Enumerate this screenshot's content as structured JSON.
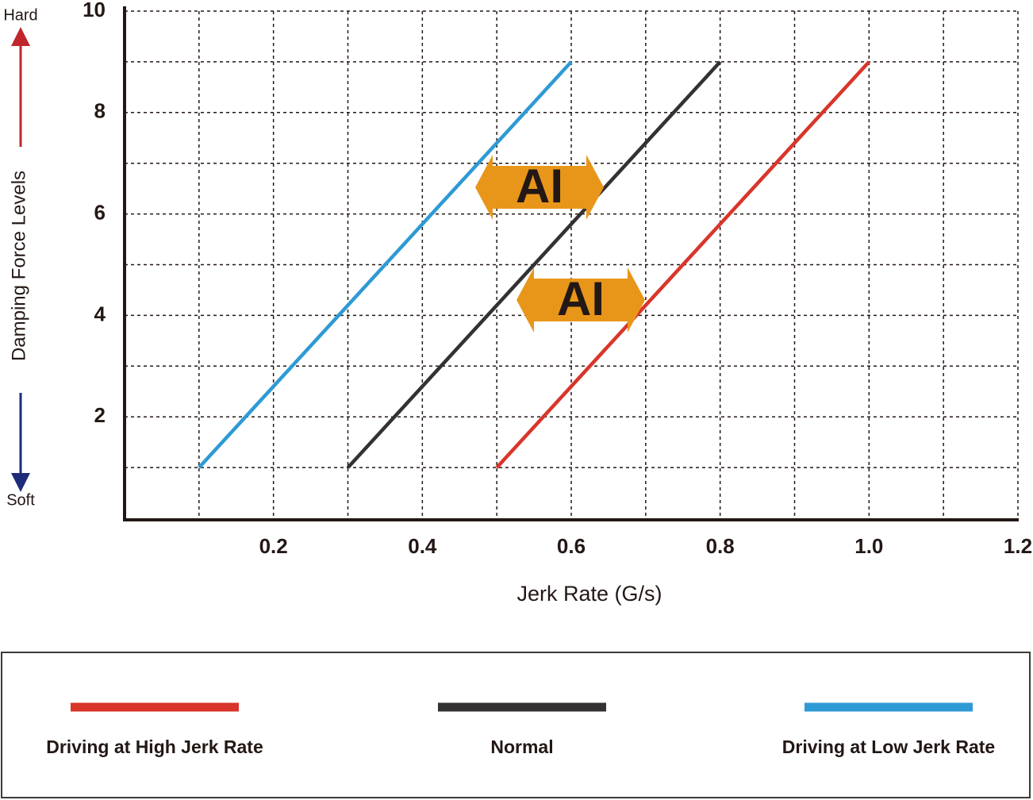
{
  "chart_data": {
    "type": "line",
    "xlabel": "Jerk Rate (G/s)",
    "ylabel": "Damping Force Levels",
    "top_label": "Hard",
    "bottom_label": "Soft",
    "xlim": [
      0,
      1.2
    ],
    "ylim": [
      0,
      10
    ],
    "xticks": [
      0.2,
      0.4,
      0.6,
      0.8,
      {
        "value": 1,
        "label": "1.0"
      },
      1.2
    ],
    "yticks": [
      2,
      4,
      6,
      8,
      10
    ],
    "x_minor_grid": [
      0.1,
      0.3,
      0.5,
      0.7,
      0.9,
      1.1
    ],
    "y_minor_grid": [
      1,
      3,
      5,
      7,
      9
    ],
    "grid": true,
    "series": [
      {
        "name": "Driving at High Jerk Rate",
        "color": "#d9352a",
        "x": [
          0.5,
          1.0
        ],
        "values": [
          1,
          9
        ]
      },
      {
        "name": "Normal",
        "color": "#333132",
        "x": [
          0.3,
          0.8
        ],
        "values": [
          1,
          9
        ]
      },
      {
        "name": "Driving at Low Jerk Rate",
        "color": "#2e9ad4",
        "x": [
          0.1,
          0.6
        ],
        "values": [
          1,
          9
        ]
      }
    ],
    "annotations": [
      "AI",
      "AI"
    ],
    "annotation_color": "#e8961a"
  }
}
